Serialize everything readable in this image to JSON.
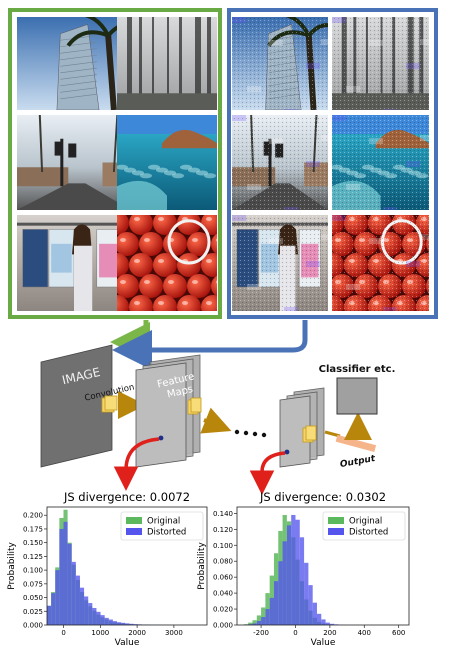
{
  "panels": {
    "original": {
      "border_color": "#6aaa45"
    },
    "distorted": {
      "border_color": "#4a72b6"
    },
    "images": [
      {
        "scene": "skyscraper-palm",
        "caption": ""
      },
      {
        "scene": "foggy-forest",
        "caption": ""
      },
      {
        "scene": "traffic-street",
        "caption": ""
      },
      {
        "scene": "sea-rocks",
        "caption": ""
      },
      {
        "scene": "clothing-store",
        "caption": ""
      },
      {
        "scene": "red-apples",
        "caption": ""
      }
    ]
  },
  "diagram": {
    "image_label": "IMAGE",
    "convolution_label": "Convolution",
    "feature_maps_label": "Feature\nMaps",
    "classifier_label": "Classifier etc.",
    "output_label": "Output",
    "arrow_colors": {
      "green": "#7ab648",
      "blue": "#4a72b6",
      "gold": "#b8860b",
      "red": "#e0201b"
    }
  },
  "chart_data": [
    {
      "type": "histogram",
      "title": "JS divergence: 0.0072",
      "xlabel": "Value",
      "ylabel": "Probability",
      "xlim": [
        -450,
        3900
      ],
      "ylim": [
        0,
        0.215
      ],
      "xticks": [
        0,
        1000,
        2000,
        3000
      ],
      "yticks": [
        0.0,
        0.025,
        0.05,
        0.075,
        0.1,
        0.125,
        0.15,
        0.175,
        0.2
      ],
      "legend_position": "upper-right",
      "series": [
        {
          "name": "Original",
          "color": "#5cb85c",
          "bins_start": -450,
          "bin_width": 112,
          "values": [
            0.035,
            0.06,
            0.105,
            0.195,
            0.21,
            0.15,
            0.11,
            0.082,
            0.06,
            0.045,
            0.034,
            0.026,
            0.019,
            0.014,
            0.01,
            0.007,
            0.005,
            0.004,
            0.003,
            0.002,
            0.0015,
            0.001,
            0.001,
            0.0008,
            0.0006,
            0.0005,
            0.0004,
            0.0003,
            0.0002,
            0.0002,
            0.0001,
            0.0001,
            0.0001,
            0.0001,
            0.0001,
            0,
            0,
            0,
            0
          ]
        },
        {
          "name": "Distorted",
          "color": "#5555ee",
          "bins_start": -450,
          "bin_width": 112,
          "values": [
            0.035,
            0.058,
            0.1,
            0.175,
            0.188,
            0.148,
            0.115,
            0.09,
            0.068,
            0.052,
            0.04,
            0.031,
            0.024,
            0.018,
            0.013,
            0.01,
            0.007,
            0.005,
            0.004,
            0.003,
            0.0022,
            0.0016,
            0.0012,
            0.0009,
            0.0007,
            0.0005,
            0.0004,
            0.0003,
            0.0002,
            0.0002,
            0.0001,
            0.0001,
            0.0001,
            0.0001,
            0.0001,
            0,
            0,
            0,
            0
          ]
        }
      ]
    },
    {
      "type": "histogram",
      "title": "JS divergence: 0.0302",
      "xlabel": "Value",
      "ylabel": "Probability",
      "xlim": [
        -340,
        660
      ],
      "ylim": [
        0,
        0.148
      ],
      "xticks": [
        -200,
        0,
        200,
        400,
        600
      ],
      "yticks": [
        0.0,
        0.02,
        0.04,
        0.06,
        0.08,
        0.1,
        0.12,
        0.14
      ],
      "legend_position": "upper-right",
      "series": [
        {
          "name": "Original",
          "color": "#5cb85c",
          "bins_start": -300,
          "bin_width": 25,
          "values": [
            0.001,
            0.003,
            0.006,
            0.012,
            0.022,
            0.04,
            0.062,
            0.09,
            0.118,
            0.138,
            0.13,
            0.11,
            0.082,
            0.055,
            0.032,
            0.018,
            0.009,
            0.004,
            0.002,
            0.001,
            0.0005,
            0.0003,
            0,
            0
          ]
        },
        {
          "name": "Distorted",
          "color": "#5555ee",
          "bins_start": -300,
          "bin_width": 25,
          "values": [
            0,
            0.001,
            0.002,
            0.005,
            0.01,
            0.02,
            0.034,
            0.055,
            0.08,
            0.105,
            0.125,
            0.138,
            0.132,
            0.11,
            0.078,
            0.05,
            0.028,
            0.014,
            0.007,
            0.003,
            0.0015,
            0.0008,
            0.0003,
            0.0001
          ]
        }
      ]
    }
  ]
}
